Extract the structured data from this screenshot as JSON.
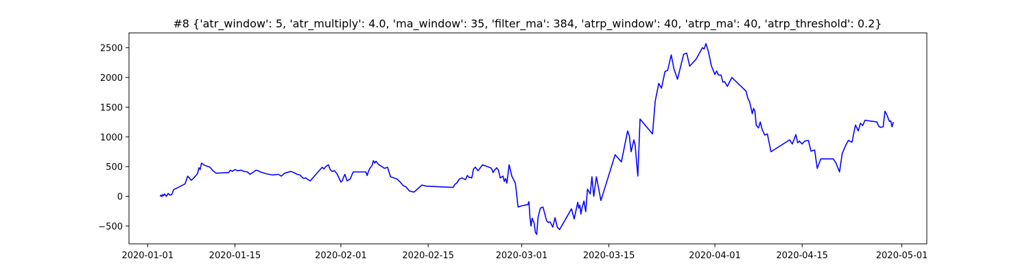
{
  "chart_data": {
    "type": "line",
    "title": "#8 {'atr_window': 5, 'atr_multiply': 4.0, 'ma_window': 35, 'filter_ma': 384, 'atrp_window': 40, 'atrp_ma': 40, 'atrp_threshold': 0.2}",
    "xlabel": "",
    "ylabel": "",
    "x_axis": "date",
    "xlim": [
      "2019-12-29",
      "2020-05-05"
    ],
    "ylim": [
      -800,
      2750
    ],
    "x_ticks": [
      "2020-01-01",
      "2020-01-15",
      "2020-02-01",
      "2020-02-15",
      "2020-03-01",
      "2020-03-15",
      "2020-04-01",
      "2020-04-15",
      "2020-05-01"
    ],
    "y_ticks": [
      -500,
      0,
      500,
      1000,
      1500,
      2000,
      2500
    ],
    "grid": false,
    "legend": "none",
    "series": [
      {
        "color": "#0000ff",
        "points": [
          [
            "2020-01-03",
            0
          ],
          [
            "2020-01-03",
            20
          ],
          [
            "2020-01-03",
            -5
          ],
          [
            "2020-01-03",
            30
          ],
          [
            "2020-01-03",
            10
          ],
          [
            "2020-01-03",
            40
          ],
          [
            "2020-01-04",
            0
          ],
          [
            "2020-01-04",
            50
          ],
          [
            "2020-01-04",
            20
          ],
          [
            "2020-01-04",
            30
          ],
          [
            "2020-01-04",
            110
          ],
          [
            "2020-01-07",
            210
          ],
          [
            "2020-01-07",
            340
          ],
          [
            "2020-01-08",
            270
          ],
          [
            "2020-01-08",
            310
          ],
          [
            "2020-01-09",
            380
          ],
          [
            "2020-01-09",
            480
          ],
          [
            "2020-01-09",
            450
          ],
          [
            "2020-01-09",
            560
          ],
          [
            "2020-01-10",
            530
          ],
          [
            "2020-01-10",
            510
          ],
          [
            "2020-01-11",
            490
          ],
          [
            "2020-01-11",
            430
          ],
          [
            "2020-01-11",
            390
          ],
          [
            "2020-01-14",
            400
          ],
          [
            "2020-01-14",
            440
          ],
          [
            "2020-01-14",
            420
          ],
          [
            "2020-01-15",
            450
          ],
          [
            "2020-01-15",
            430
          ],
          [
            "2020-01-16",
            440
          ],
          [
            "2020-01-16",
            420
          ],
          [
            "2020-01-17",
            410
          ],
          [
            "2020-01-17",
            370
          ],
          [
            "2020-01-18",
            410
          ],
          [
            "2020-01-18",
            440
          ],
          [
            "2020-01-18",
            430
          ],
          [
            "2020-01-18",
            410
          ],
          [
            "2020-01-20",
            380
          ],
          [
            "2020-01-21",
            360
          ],
          [
            "2020-01-22",
            370
          ],
          [
            "2020-01-22",
            340
          ],
          [
            "2020-01-23",
            390
          ],
          [
            "2020-01-24",
            420
          ],
          [
            "2020-01-24",
            400
          ],
          [
            "2020-01-25",
            370
          ],
          [
            "2020-01-25",
            360
          ],
          [
            "2020-01-26",
            300
          ],
          [
            "2020-01-26",
            310
          ],
          [
            "2020-01-26",
            280
          ],
          [
            "2020-01-26",
            260
          ],
          [
            "2020-01-29",
            490
          ],
          [
            "2020-01-29",
            460
          ],
          [
            "2020-01-29",
            500
          ],
          [
            "2020-01-30",
            530
          ],
          [
            "2020-01-30",
            450
          ],
          [
            "2020-01-30",
            420
          ],
          [
            "2020-01-31",
            430
          ],
          [
            "2020-01-31",
            370
          ],
          [
            "2020-02-01",
            240
          ],
          [
            "2020-02-01",
            260
          ],
          [
            "2020-02-01",
            320
          ],
          [
            "2020-02-01",
            370
          ],
          [
            "2020-02-02",
            260
          ],
          [
            "2020-02-02",
            290
          ],
          [
            "2020-02-02",
            410
          ],
          [
            "2020-02-05",
            410
          ],
          [
            "2020-02-05",
            350
          ],
          [
            "2020-02-05",
            420
          ],
          [
            "2020-02-05",
            470
          ],
          [
            "2020-02-06",
            520
          ],
          [
            "2020-02-06",
            600
          ],
          [
            "2020-02-06",
            560
          ],
          [
            "2020-02-06",
            590
          ],
          [
            "2020-02-07",
            540
          ],
          [
            "2020-02-08",
            470
          ],
          [
            "2020-02-08",
            490
          ],
          [
            "2020-02-08",
            330
          ],
          [
            "2020-02-10",
            290
          ],
          [
            "2020-02-10",
            250
          ],
          [
            "2020-02-11",
            180
          ],
          [
            "2020-02-11",
            160
          ],
          [
            "2020-02-12",
            90
          ],
          [
            "2020-02-12",
            70
          ],
          [
            "2020-02-14",
            190
          ],
          [
            "2020-02-14",
            170
          ],
          [
            "2020-02-19",
            150
          ],
          [
            "2020-02-19",
            200
          ],
          [
            "2020-02-19",
            220
          ],
          [
            "2020-02-20",
            290
          ],
          [
            "2020-02-20",
            310
          ],
          [
            "2020-02-21",
            280
          ],
          [
            "2020-02-21",
            350
          ],
          [
            "2020-02-21",
            320
          ],
          [
            "2020-02-22",
            310
          ],
          [
            "2020-02-22",
            460
          ],
          [
            "2020-02-22",
            490
          ],
          [
            "2020-02-23",
            430
          ],
          [
            "2020-02-23",
            530
          ],
          [
            "2020-02-25",
            480
          ],
          [
            "2020-02-25",
            460
          ],
          [
            "2020-02-25",
            400
          ],
          [
            "2020-02-25",
            440
          ],
          [
            "2020-02-26",
            480
          ],
          [
            "2020-02-26",
            440
          ],
          [
            "2020-02-26",
            310
          ],
          [
            "2020-02-27",
            340
          ],
          [
            "2020-02-27",
            250
          ],
          [
            "2020-02-27",
            300
          ],
          [
            "2020-02-27",
            220
          ],
          [
            "2020-02-28",
            530
          ],
          [
            "2020-02-28",
            340
          ],
          [
            "2020-02-29",
            220
          ],
          [
            "2020-02-29",
            -180
          ],
          [
            "2020-03-01",
            -160
          ],
          [
            "2020-03-02",
            -140
          ],
          [
            "2020-03-02",
            -90
          ],
          [
            "2020-03-02",
            -360
          ],
          [
            "2020-03-02",
            -500
          ],
          [
            "2020-03-02",
            -370
          ],
          [
            "2020-03-03",
            -450
          ],
          [
            "2020-03-03",
            -610
          ],
          [
            "2020-03-03",
            -640
          ],
          [
            "2020-03-03",
            -350
          ],
          [
            "2020-03-04",
            -200
          ],
          [
            "2020-03-04",
            -180
          ],
          [
            "2020-03-05",
            -410
          ],
          [
            "2020-03-05",
            -440
          ],
          [
            "2020-03-05",
            -430
          ],
          [
            "2020-03-06",
            -520
          ],
          [
            "2020-03-06",
            -360
          ],
          [
            "2020-03-06",
            -520
          ],
          [
            "2020-03-06",
            -560
          ],
          [
            "2020-03-09",
            -210
          ],
          [
            "2020-03-09",
            -380
          ],
          [
            "2020-03-10",
            -100
          ],
          [
            "2020-03-10",
            -200
          ],
          [
            "2020-03-10",
            -150
          ],
          [
            "2020-03-10",
            -300
          ],
          [
            "2020-03-10",
            -200
          ],
          [
            "2020-03-11",
            -80
          ],
          [
            "2020-03-11",
            -260
          ],
          [
            "2020-03-11",
            120
          ],
          [
            "2020-03-12",
            40
          ],
          [
            "2020-03-12",
            330
          ],
          [
            "2020-03-12",
            0
          ],
          [
            "2020-03-13",
            330
          ],
          [
            "2020-03-13",
            -70
          ],
          [
            "2020-03-16",
            700
          ],
          [
            "2020-03-17",
            580
          ],
          [
            "2020-03-18",
            1100
          ],
          [
            "2020-03-18",
            1020
          ],
          [
            "2020-03-18",
            750
          ],
          [
            "2020-03-19",
            950
          ],
          [
            "2020-03-19",
            860
          ],
          [
            "2020-03-19",
            600
          ],
          [
            "2020-03-19",
            340
          ],
          [
            "2020-03-20",
            1300
          ],
          [
            "2020-03-22",
            1050
          ],
          [
            "2020-03-22",
            1600
          ],
          [
            "2020-03-23",
            1900
          ],
          [
            "2020-03-23",
            1820
          ],
          [
            "2020-03-24",
            2100
          ],
          [
            "2020-03-24",
            2120
          ],
          [
            "2020-03-25",
            2380
          ],
          [
            "2020-03-25",
            2150
          ],
          [
            "2020-03-26",
            1970
          ],
          [
            "2020-03-27",
            2390
          ],
          [
            "2020-03-27",
            2410
          ],
          [
            "2020-03-27",
            2190
          ],
          [
            "2020-03-29",
            2310
          ],
          [
            "2020-03-30",
            2500
          ],
          [
            "2020-03-30",
            2480
          ],
          [
            "2020-03-30",
            2570
          ],
          [
            "2020-03-31",
            2420
          ],
          [
            "2020-03-31",
            2200
          ],
          [
            "2020-04-01",
            2050
          ],
          [
            "2020-04-01",
            2110
          ],
          [
            "2020-04-01",
            2040
          ],
          [
            "2020-04-02",
            2040
          ],
          [
            "2020-04-02",
            1920
          ],
          [
            "2020-04-02",
            1930
          ],
          [
            "2020-04-03",
            1850
          ],
          [
            "2020-04-03",
            2000
          ],
          [
            "2020-04-06",
            1770
          ],
          [
            "2020-04-06",
            1650
          ],
          [
            "2020-04-06",
            1590
          ],
          [
            "2020-04-07",
            1390
          ],
          [
            "2020-04-07",
            1480
          ],
          [
            "2020-04-07",
            1430
          ],
          [
            "2020-04-07",
            1200
          ],
          [
            "2020-04-08",
            1150
          ],
          [
            "2020-04-08",
            1250
          ],
          [
            "2020-04-08",
            1130
          ],
          [
            "2020-04-09",
            1030
          ],
          [
            "2020-04-09",
            1050
          ],
          [
            "2020-04-10",
            750
          ],
          [
            "2020-04-13",
            950
          ],
          [
            "2020-04-13",
            880
          ],
          [
            "2020-04-14",
            1040
          ],
          [
            "2020-04-14",
            900
          ],
          [
            "2020-04-14",
            930
          ],
          [
            "2020-04-15",
            880
          ],
          [
            "2020-04-15",
            930
          ],
          [
            "2020-04-16",
            940
          ],
          [
            "2020-04-16",
            760
          ],
          [
            "2020-04-17",
            780
          ],
          [
            "2020-04-17",
            470
          ],
          [
            "2020-04-18",
            630
          ],
          [
            "2020-04-20",
            630
          ],
          [
            "2020-04-20",
            560
          ],
          [
            "2020-04-21",
            410
          ],
          [
            "2020-04-21",
            720
          ],
          [
            "2020-04-22",
            860
          ],
          [
            "2020-04-22",
            940
          ],
          [
            "2020-04-23",
            910
          ],
          [
            "2020-04-23",
            1060
          ],
          [
            "2020-04-23",
            1200
          ],
          [
            "2020-04-24",
            1100
          ],
          [
            "2020-04-24",
            1230
          ],
          [
            "2020-04-24",
            1190
          ],
          [
            "2020-04-24",
            1280
          ],
          [
            "2020-04-27",
            1250
          ],
          [
            "2020-04-27",
            1180
          ],
          [
            "2020-04-27",
            1160
          ],
          [
            "2020-04-28",
            1170
          ],
          [
            "2020-04-28",
            1430
          ],
          [
            "2020-04-28",
            1380
          ],
          [
            "2020-04-29",
            1260
          ],
          [
            "2020-04-29",
            1270
          ],
          [
            "2020-04-29",
            1170
          ],
          [
            "2020-04-29",
            1250
          ]
        ]
      }
    ]
  }
}
